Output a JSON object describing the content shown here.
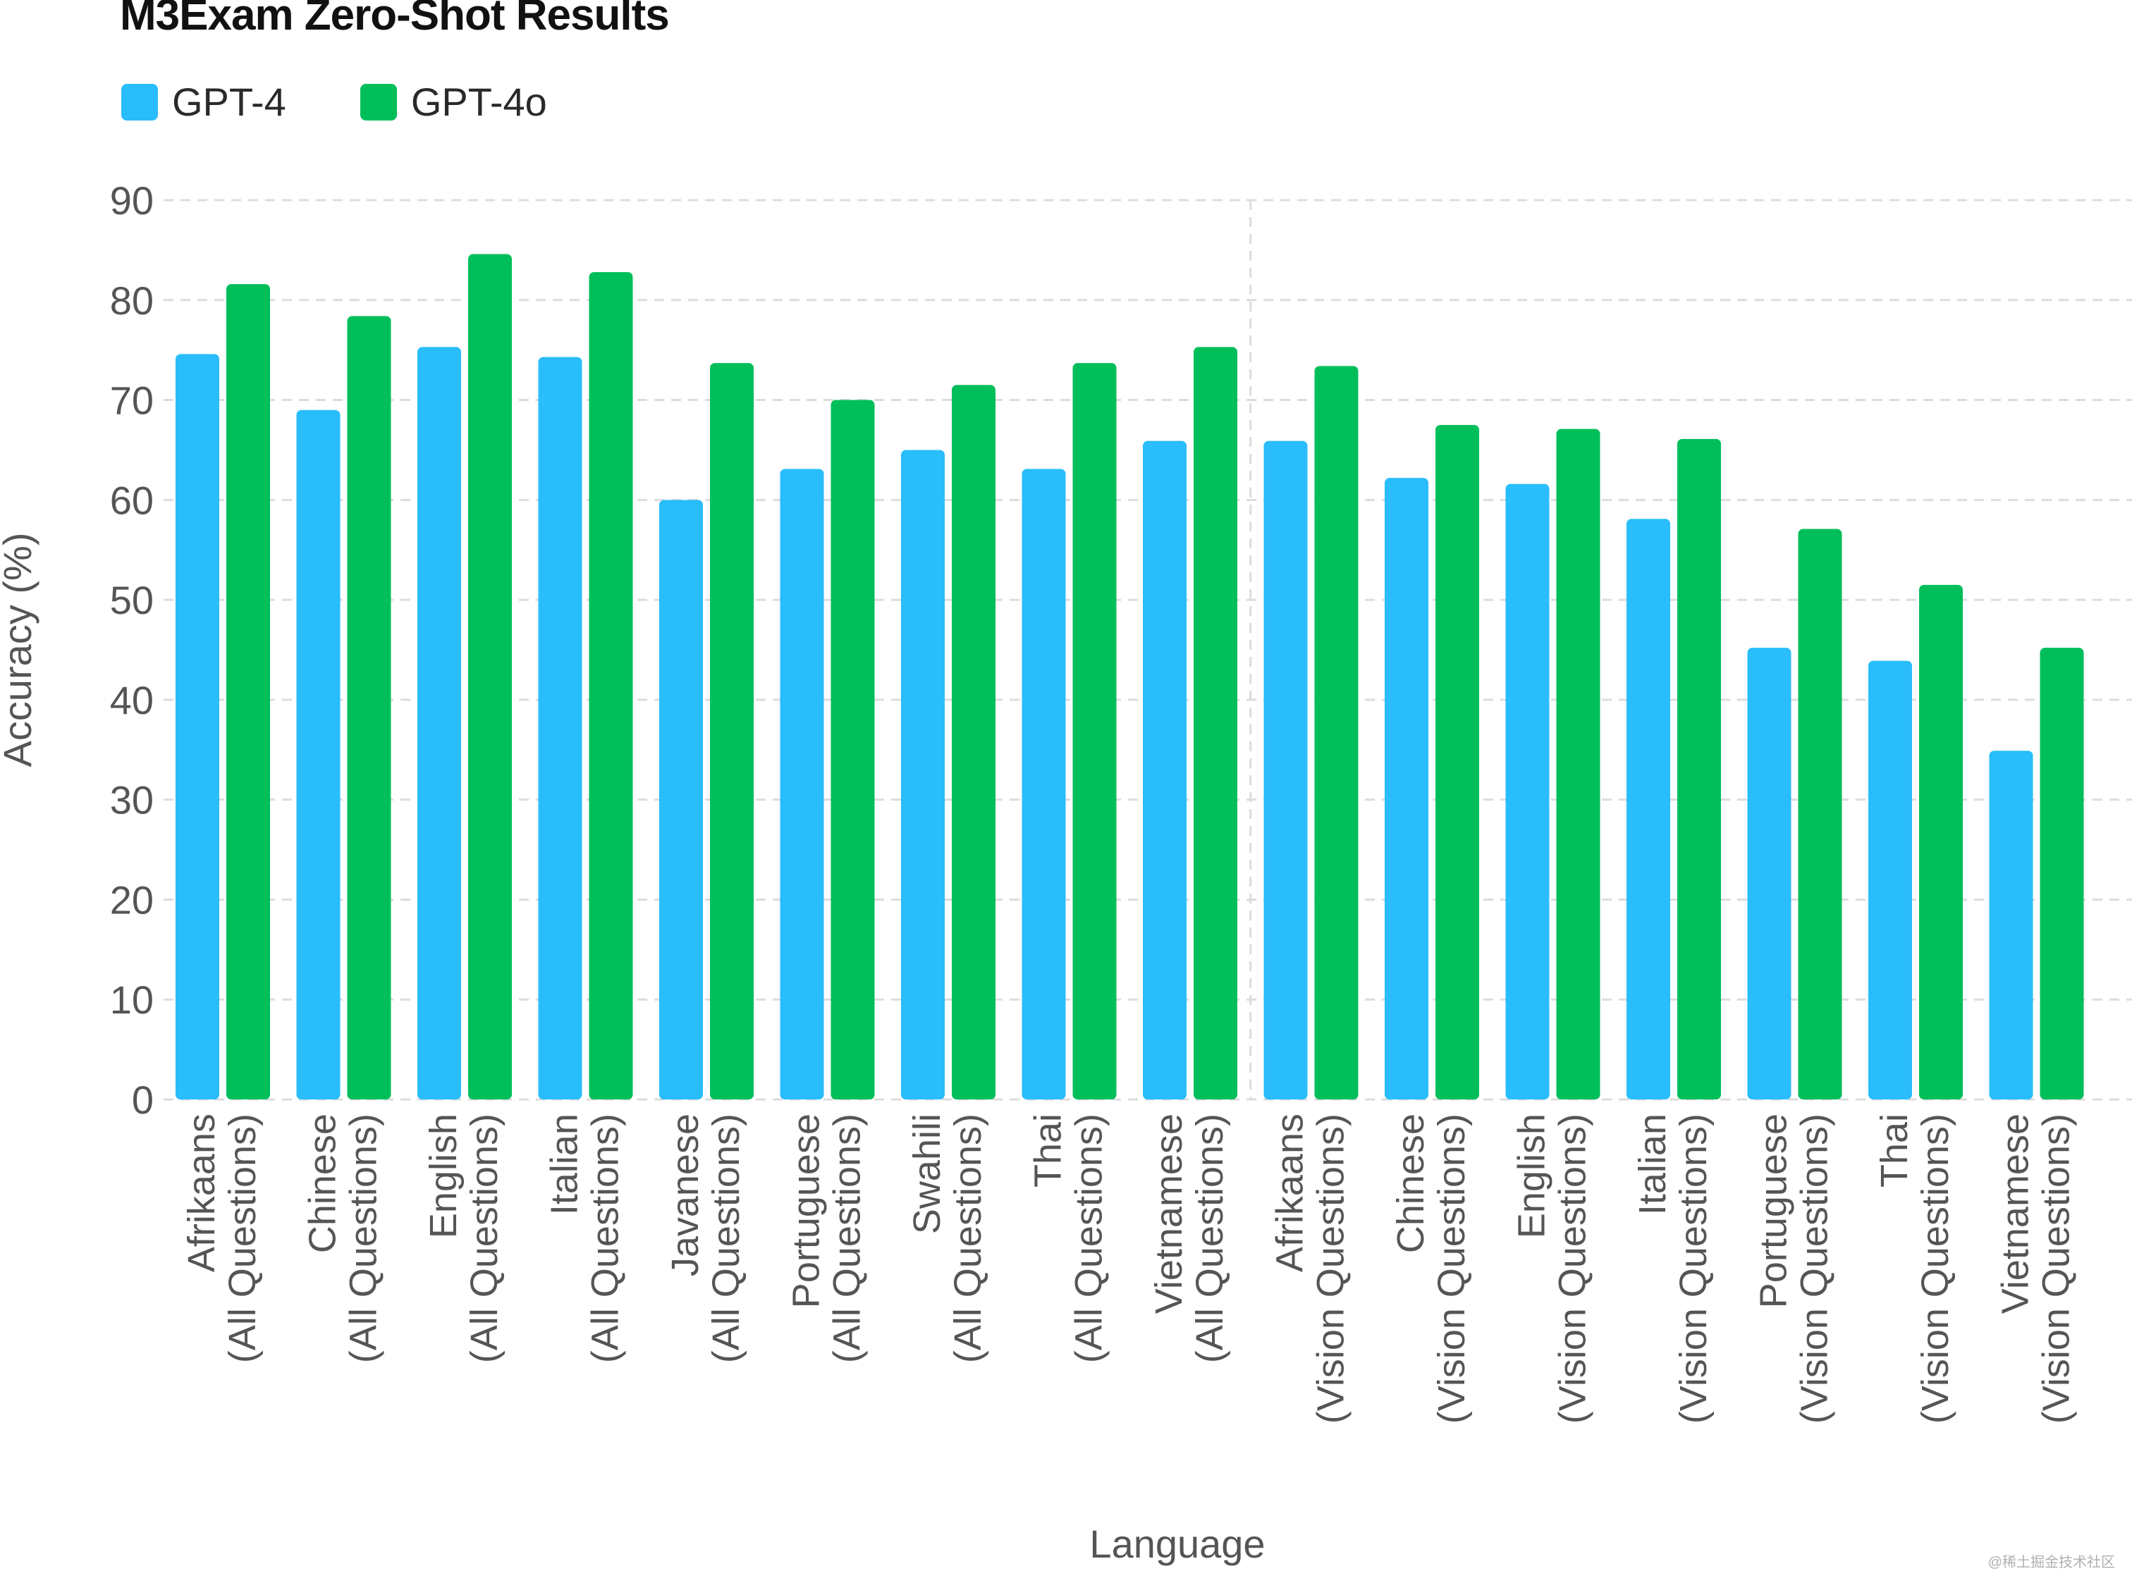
{
  "chart_data": {
    "type": "bar",
    "title": "M3Exam Zero-Shot Results",
    "xlabel": "Language",
    "ylabel": "Accuracy (%)",
    "ylim": [
      0,
      90
    ],
    "yticks": [
      0,
      10,
      20,
      30,
      40,
      50,
      60,
      70,
      80,
      90
    ],
    "grid": true,
    "legend_position": "top-left",
    "categories": [
      [
        "Afrikaans",
        "(All Questions)"
      ],
      [
        "Chinese",
        "(All Questions)"
      ],
      [
        "English",
        "(All Questions)"
      ],
      [
        "Italian",
        "(All Questions)"
      ],
      [
        "Javanese",
        "(All Questions)"
      ],
      [
        "Portuguese",
        "(All Questions)"
      ],
      [
        "Swahili",
        "(All Questions)"
      ],
      [
        "Thai",
        "(All Questions)"
      ],
      [
        "Vietnamese",
        "(All Questions)"
      ],
      [
        "Afrikaans",
        "(Vision Questions)"
      ],
      [
        "Chinese",
        "(Vision Questions)"
      ],
      [
        "English",
        "(Vision Questions)"
      ],
      [
        "Italian",
        "(Vision Questions)"
      ],
      [
        "Portuguese",
        "(Vision Questions)"
      ],
      [
        "Thai",
        "(Vision Questions)"
      ],
      [
        "Vietnamese",
        "(Vision Questions)"
      ]
    ],
    "series": [
      {
        "name": "GPT-4",
        "color": "#29bdfb",
        "values": [
          74.6,
          69.0,
          75.3,
          74.3,
          60.0,
          63.1,
          65.0,
          63.1,
          65.9,
          65.9,
          62.2,
          61.6,
          58.1,
          45.2,
          43.9,
          34.9
        ]
      },
      {
        "name": "GPT-4o",
        "color": "#00be5a",
        "values": [
          81.6,
          78.4,
          84.6,
          82.8,
          73.7,
          70.0,
          71.5,
          73.7,
          75.3,
          73.4,
          67.5,
          67.1,
          66.1,
          57.1,
          51.5,
          45.2
        ]
      }
    ]
  },
  "watermark": "@稀土掘金技术社区"
}
